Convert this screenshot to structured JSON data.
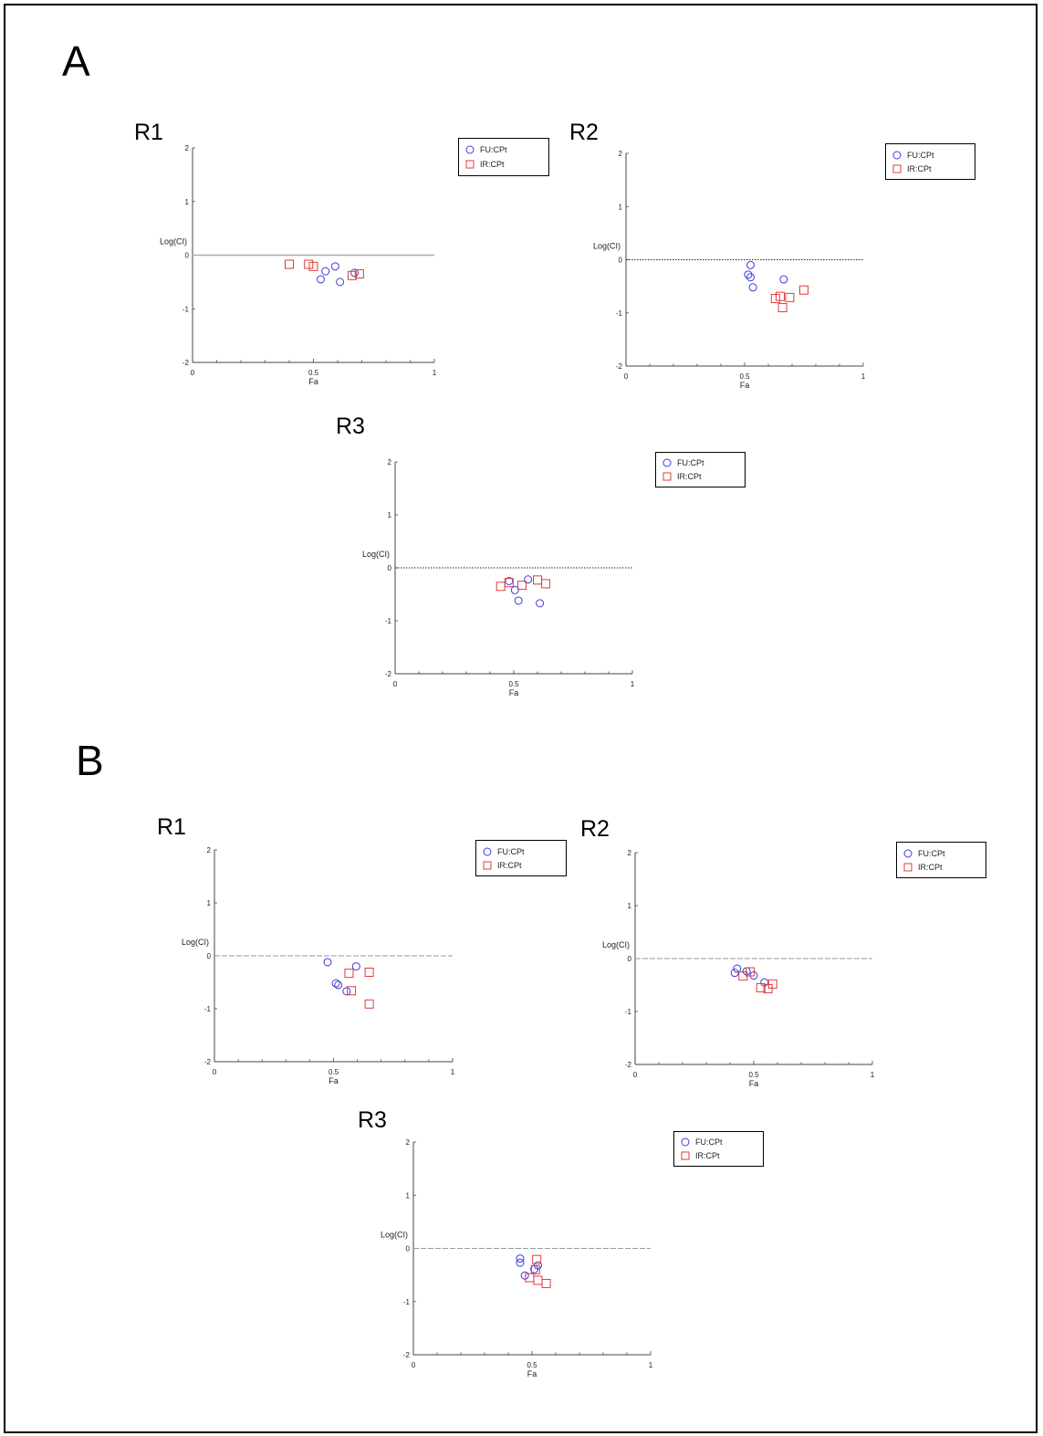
{
  "panels": {
    "A": "A",
    "B": "B"
  },
  "colors": {
    "circle": "#3b3bd9",
    "square": "#e23b3b"
  },
  "chart_data": [
    {
      "id": "A-R1",
      "type": "scatter",
      "title": "R1",
      "xlabel": "Fa",
      "ylabel": "Log(CI)",
      "xlim": [
        0,
        1
      ],
      "ylim": [
        -2,
        2
      ],
      "xticks": [
        "0",
        "0.5",
        "1"
      ],
      "yticks": [
        "2",
        "1",
        "0",
        "-1",
        "-2"
      ],
      "zero_line": "solid",
      "legend": [
        "FU:CPt",
        "IR:CPt"
      ],
      "series": [
        {
          "name": "FU:CPt",
          "marker": "circle",
          "points": [
            [
              0.55,
              -0.3
            ],
            [
              0.59,
              -0.21
            ],
            [
              0.53,
              -0.45
            ],
            [
              0.61,
              -0.5
            ],
            [
              0.67,
              -0.33
            ]
          ]
        },
        {
          "name": "IR:CPt",
          "marker": "square",
          "points": [
            [
              0.4,
              -0.17
            ],
            [
              0.48,
              -0.17
            ],
            [
              0.5,
              -0.21
            ],
            [
              0.66,
              -0.38
            ],
            [
              0.69,
              -0.35
            ]
          ]
        }
      ]
    },
    {
      "id": "A-R2",
      "type": "scatter",
      "title": "R2",
      "xlabel": "Fa",
      "ylabel": "Log(CI)",
      "xlim": [
        0,
        1
      ],
      "ylim": [
        -2,
        2
      ],
      "xticks": [
        "0",
        "0.5",
        "1"
      ],
      "yticks": [
        "2",
        "1",
        "0",
        "-1",
        "-2"
      ],
      "zero_line": "dotted",
      "legend": [
        "FU:CPt",
        "IR:CPt"
      ],
      "series": [
        {
          "name": "FU:CPt",
          "marker": "circle",
          "points": [
            [
              0.525,
              -0.1
            ],
            [
              0.515,
              -0.28
            ],
            [
              0.525,
              -0.33
            ],
            [
              0.535,
              -0.52
            ],
            [
              0.665,
              -0.37
            ]
          ]
        },
        {
          "name": "IR:CPt",
          "marker": "square",
          "points": [
            [
              0.63,
              -0.73
            ],
            [
              0.65,
              -0.69
            ],
            [
              0.69,
              -0.71
            ],
            [
              0.66,
              -0.9
            ],
            [
              0.75,
              -0.57
            ]
          ]
        }
      ]
    },
    {
      "id": "A-R3",
      "type": "scatter",
      "title": "R3",
      "xlabel": "Fa",
      "ylabel": "Log(CI)",
      "xlim": [
        0,
        1
      ],
      "ylim": [
        -2,
        2
      ],
      "xticks": [
        "0",
        "0.5",
        "1"
      ],
      "yticks": [
        "2",
        "1",
        "0",
        "-1",
        "-2"
      ],
      "zero_line": "dotted",
      "legend": [
        "FU:CPt",
        "IR:CPt"
      ],
      "series": [
        {
          "name": "FU:CPt",
          "marker": "circle",
          "points": [
            [
              0.48,
              -0.25
            ],
            [
              0.56,
              -0.22
            ],
            [
              0.505,
              -0.42
            ],
            [
              0.52,
              -0.62
            ],
            [
              0.61,
              -0.67
            ]
          ]
        },
        {
          "name": "IR:CPt",
          "marker": "square",
          "points": [
            [
              0.445,
              -0.35
            ],
            [
              0.48,
              -0.28
            ],
            [
              0.535,
              -0.33
            ],
            [
              0.6,
              -0.23
            ],
            [
              0.635,
              -0.3
            ]
          ]
        }
      ]
    },
    {
      "id": "B-R1",
      "type": "scatter",
      "title": "R1",
      "xlabel": "Fa",
      "ylabel": "Log(CI)",
      "xlim": [
        0,
        1
      ],
      "ylim": [
        -2,
        2
      ],
      "xticks": [
        "0",
        "0.5",
        "1"
      ],
      "yticks": [
        "2",
        "1",
        "0",
        "-1",
        "-2"
      ],
      "zero_line": "dashed",
      "legend": [
        "FU:CPt",
        "IR:CPt"
      ],
      "series": [
        {
          "name": "FU:CPt",
          "marker": "circle",
          "points": [
            [
              0.475,
              -0.12
            ],
            [
              0.51,
              -0.52
            ],
            [
              0.52,
              -0.55
            ],
            [
              0.555,
              -0.67
            ],
            [
              0.595,
              -0.2
            ]
          ]
        },
        {
          "name": "IR:CPt",
          "marker": "square",
          "points": [
            [
              0.565,
              -0.33
            ],
            [
              0.575,
              -0.66
            ],
            [
              0.65,
              -0.31
            ],
            [
              0.65,
              -0.91
            ]
          ]
        }
      ]
    },
    {
      "id": "B-R2",
      "type": "scatter",
      "title": "R2",
      "xlabel": "Fa",
      "ylabel": "Log(CI)",
      "xlim": [
        0,
        1
      ],
      "ylim": [
        -2,
        2
      ],
      "xticks": [
        "0",
        "0.5",
        "1"
      ],
      "yticks": [
        "2",
        "1",
        "0",
        "-1",
        "-2"
      ],
      "zero_line": "dashed",
      "legend": [
        "FU:CPt",
        "IR:CPt"
      ],
      "series": [
        {
          "name": "FU:CPt",
          "marker": "circle",
          "points": [
            [
              0.42,
              -0.27
            ],
            [
              0.43,
              -0.19
            ],
            [
              0.47,
              -0.24
            ],
            [
              0.5,
              -0.32
            ],
            [
              0.545,
              -0.45
            ]
          ]
        },
        {
          "name": "IR:CPt",
          "marker": "square",
          "points": [
            [
              0.455,
              -0.33
            ],
            [
              0.485,
              -0.25
            ],
            [
              0.53,
              -0.55
            ],
            [
              0.56,
              -0.57
            ],
            [
              0.58,
              -0.48
            ]
          ]
        }
      ]
    },
    {
      "id": "B-R3",
      "type": "scatter",
      "title": "R3",
      "xlabel": "Fa",
      "ylabel": "Log(CI)",
      "xlim": [
        0,
        1
      ],
      "ylim": [
        -2,
        2
      ],
      "xticks": [
        "0",
        "0.5",
        "1"
      ],
      "yticks": [
        "2",
        "1",
        "0",
        "-1",
        "-2"
      ],
      "zero_line": "dashed",
      "legend": [
        "FU:CPt",
        "IR:CPt"
      ],
      "series": [
        {
          "name": "FU:CPt",
          "marker": "circle",
          "points": [
            [
              0.45,
              -0.19
            ],
            [
              0.45,
              -0.27
            ],
            [
              0.47,
              -0.51
            ],
            [
              0.51,
              -0.39
            ],
            [
              0.525,
              -0.32
            ]
          ]
        },
        {
          "name": "IR:CPt",
          "marker": "square",
          "points": [
            [
              0.52,
              -0.21
            ],
            [
              0.515,
              -0.4
            ],
            [
              0.49,
              -0.55
            ],
            [
              0.525,
              -0.6
            ],
            [
              0.56,
              -0.66
            ]
          ]
        }
      ]
    }
  ]
}
